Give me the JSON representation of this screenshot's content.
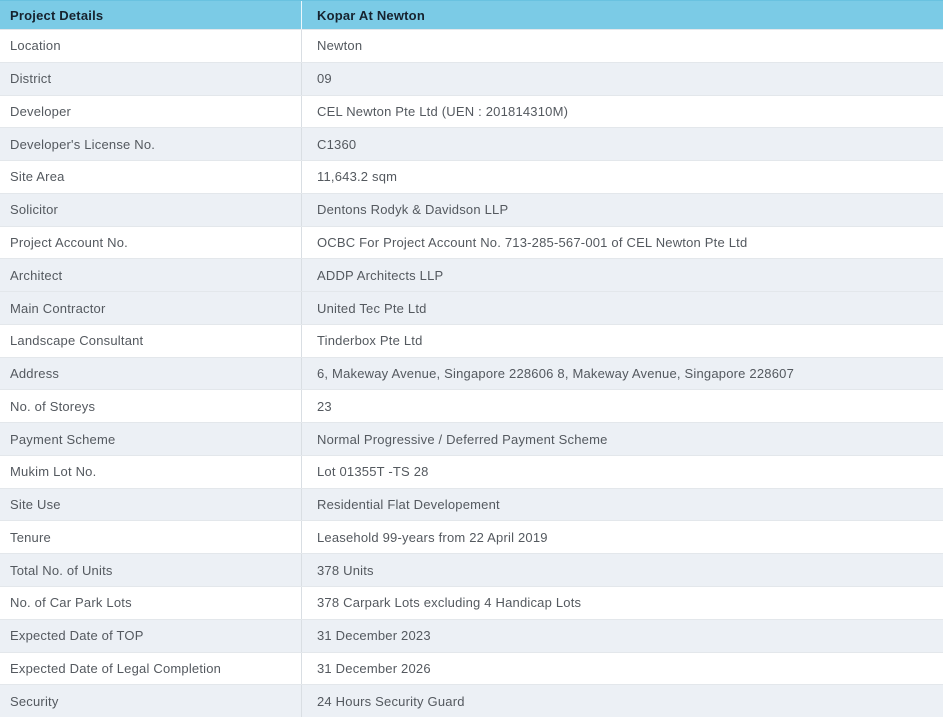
{
  "table": {
    "header": {
      "label_col": "Project Details",
      "value_col": "Kopar At Newton"
    },
    "rows": [
      {
        "label": "Location",
        "value": "Newton",
        "shaded": false
      },
      {
        "label": "District",
        "value": "09",
        "shaded": true
      },
      {
        "label": "Developer",
        "value": "CEL Newton Pte Ltd (UEN : 201814310M)",
        "shaded": false
      },
      {
        "label": "Developer's License No.",
        "value": "C1360",
        "shaded": true
      },
      {
        "label": "Site Area",
        "value": "11,643.2 sqm",
        "shaded": false
      },
      {
        "label": "Solicitor",
        "value": "Dentons Rodyk & Davidson LLP",
        "shaded": true
      },
      {
        "label": "Project Account No.",
        "value": "OCBC For Project Account No. 713-285-567-001 of CEL Newton Pte Ltd",
        "shaded": false
      },
      {
        "label": "Architect",
        "value": "ADDP Architects LLP",
        "shaded": true
      },
      {
        "label": "Main Contractor",
        "value": "United Tec Pte Ltd",
        "shaded": true
      },
      {
        "label": "Landscape Consultant",
        "value": "Tinderbox Pte Ltd",
        "shaded": false
      },
      {
        "label": "Address",
        "value": "6, Makeway Avenue, Singapore 228606 8, Makeway Avenue, Singapore 228607",
        "shaded": true
      },
      {
        "label": "No. of Storeys",
        "value": "23",
        "shaded": false
      },
      {
        "label": "Payment Scheme",
        "value": "Normal Progressive / Deferred Payment Scheme",
        "shaded": true
      },
      {
        "label": "Mukim Lot No.",
        "value": "Lot 01355T -TS 28",
        "shaded": false
      },
      {
        "label": "Site Use",
        "value": "Residential Flat Developement",
        "shaded": true
      },
      {
        "label": "Tenure",
        "value": "Leasehold 99-years from 22 April 2019",
        "shaded": false
      },
      {
        "label": "Total No. of Units",
        "value": "378 Units",
        "shaded": true
      },
      {
        "label": "No. of Car Park Lots",
        "value": "378 Carpark Lots excluding 4 Handicap Lots",
        "shaded": false
      },
      {
        "label": "Expected Date of TOP",
        "value": "31 December 2023",
        "shaded": true
      },
      {
        "label": "Expected Date of Legal Completion",
        "value": "31 December 2026",
        "shaded": false
      },
      {
        "label": "Security",
        "value": "24 Hours Security Guard",
        "shaded": true
      }
    ]
  },
  "colors": {
    "header_bg": "#7BCBE6",
    "header_top": "#69C2E0",
    "header_text": "#16222E",
    "row_shaded_bg": "#ECF0F5",
    "row_text": "#54595F",
    "border": "#E3E7EB",
    "divider": "#D9DEE3"
  }
}
